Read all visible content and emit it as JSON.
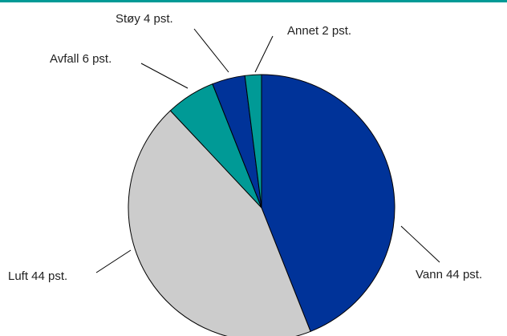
{
  "chart_data": {
    "type": "pie",
    "slices": [
      {
        "label": "Vann 44 pst.",
        "value": 44,
        "color": "#003399"
      },
      {
        "label": "Luft 44 pst.",
        "value": 44,
        "color": "#cccccc"
      },
      {
        "label": "Avfall 6 pst.",
        "value": 6,
        "color": "#009a96"
      },
      {
        "label": "Støy 4 pst.",
        "value": 4,
        "color": "#003399"
      },
      {
        "label": "Annet 2 pst.",
        "value": 2,
        "color": "#009a96"
      }
    ],
    "start": "12 o'clock",
    "direction": "clockwise"
  },
  "colors": {
    "top_rule": "#009a96"
  }
}
